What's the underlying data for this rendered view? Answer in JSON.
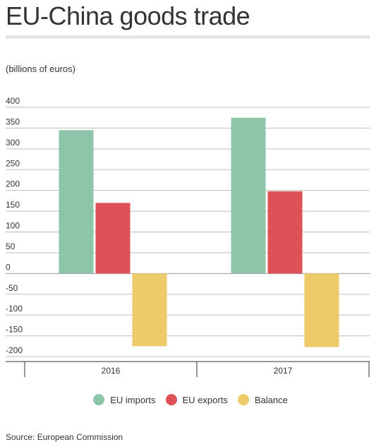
{
  "title": "EU-China goods trade",
  "subtitle": "(billions of euros)",
  "source": "Source: European Commission",
  "chart_data": {
    "type": "bar",
    "categories": [
      "2016",
      "2017"
    ],
    "series": [
      {
        "name": "EU imports",
        "values": [
          345,
          375
        ],
        "color": "#8dc5a8"
      },
      {
        "name": "EU exports",
        "values": [
          170,
          198
        ],
        "color": "#dd5256"
      },
      {
        "name": "Balance",
        "values": [
          -175,
          -177
        ],
        "color": "#efca6a"
      }
    ],
    "ylim": [
      -200,
      400
    ],
    "yticks": [
      "400",
      "350",
      "300",
      "250",
      "200",
      "150",
      "100",
      "50",
      "0",
      "-50",
      "-100",
      "-150",
      "-200"
    ],
    "grid": true,
    "legend": "bottom-center"
  }
}
